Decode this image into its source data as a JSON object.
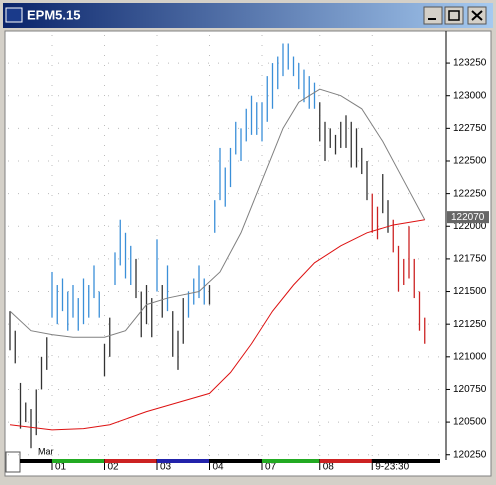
{
  "chart_data": {
    "type": "ohlc",
    "title": "EPM5.15",
    "categories": [
      null,
      null,
      null,
      null,
      null,
      null,
      null,
      null,
      "01",
      null,
      null,
      null,
      null,
      null,
      null,
      null,
      null,
      null,
      "02",
      null,
      null,
      null,
      null,
      null,
      null,
      null,
      null,
      null,
      "03",
      null,
      null,
      null,
      null,
      null,
      null,
      null,
      null,
      null,
      "04",
      null,
      null,
      null,
      null,
      null,
      null,
      null,
      null,
      null,
      "07",
      null,
      null,
      null,
      null,
      null,
      null,
      null,
      null,
      null,
      null,
      "08",
      null,
      null,
      null,
      null,
      null,
      null,
      null,
      null,
      null,
      "9-23:30",
      null,
      null,
      null,
      null,
      null,
      null,
      null,
      null,
      null,
      null
    ],
    "month_label": "Mar",
    "highs": [
      121350,
      121200,
      120800,
      120650,
      120600,
      120750,
      121000,
      121150,
      121650,
      121550,
      121600,
      121500,
      121550,
      121450,
      121600,
      121550,
      121700,
      121500,
      121100,
      121300,
      121800,
      122050,
      121950,
      121850,
      121750,
      121500,
      121550,
      121450,
      121900,
      121550,
      121700,
      121350,
      121200,
      121450,
      121500,
      121600,
      121700,
      121600,
      121550,
      122200,
      122600,
      122450,
      122600,
      122800,
      122750,
      122900,
      123000,
      122950,
      122950,
      123150,
      123250,
      123300,
      123400,
      123400,
      123300,
      123250,
      123200,
      123150,
      123100,
      122950,
      122800,
      122750,
      122700,
      122800,
      122850,
      122800,
      122750,
      122600,
      122500,
      122250,
      122150,
      122400,
      122200,
      122050,
      121850,
      121750,
      122000,
      121750,
      121500,
      121300
    ],
    "lows": [
      121050,
      120950,
      120450,
      120500,
      120300,
      120400,
      120750,
      120900,
      121300,
      121250,
      121350,
      121200,
      121300,
      121200,
      121250,
      121300,
      121450,
      121300,
      120850,
      121000,
      121550,
      121700,
      121600,
      121550,
      121450,
      121150,
      121250,
      121150,
      121500,
      121300,
      121350,
      121000,
      120900,
      121100,
      121300,
      121400,
      121450,
      121400,
      121400,
      121950,
      122200,
      122150,
      122300,
      122550,
      122500,
      122650,
      122700,
      122700,
      122650,
      122800,
      122900,
      123050,
      123150,
      123200,
      123150,
      123050,
      122950,
      122900,
      122900,
      122650,
      122500,
      122600,
      122550,
      122600,
      122600,
      122450,
      122450,
      122400,
      122200,
      121950,
      121900,
      122100,
      121950,
      121800,
      121500,
      121550,
      121600,
      121450,
      121200,
      121100
    ],
    "bar_colors": [
      "#333333",
      "#333333",
      "#333333",
      "#333333",
      "#333333",
      "#333333",
      "#333333",
      "#333333",
      "#3a8fd8",
      "#3a8fd8",
      "#3a8fd8",
      "#3a8fd8",
      "#3a8fd8",
      "#3a8fd8",
      "#3a8fd8",
      "#3a8fd8",
      "#3a8fd8",
      "#3a8fd8",
      "#333333",
      "#333333",
      "#3a8fd8",
      "#3a8fd8",
      "#3a8fd8",
      "#3a8fd8",
      "#333333",
      "#333333",
      "#333333",
      "#333333",
      "#3a8fd8",
      "#333333",
      "#3a8fd8",
      "#333333",
      "#333333",
      "#333333",
      "#3a8fd8",
      "#3a8fd8",
      "#3a8fd8",
      "#3a8fd8",
      "#333333",
      "#3a8fd8",
      "#3a8fd8",
      "#3a8fd8",
      "#3a8fd8",
      "#3a8fd8",
      "#3a8fd8",
      "#3a8fd8",
      "#3a8fd8",
      "#3a8fd8",
      "#3a8fd8",
      "#3a8fd8",
      "#3a8fd8",
      "#3a8fd8",
      "#3a8fd8",
      "#3a8fd8",
      "#3a8fd8",
      "#3a8fd8",
      "#3a8fd8",
      "#3a8fd8",
      "#3a8fd8",
      "#333333",
      "#333333",
      "#333333",
      "#333333",
      "#333333",
      "#333333",
      "#333333",
      "#333333",
      "#333333",
      "#333333",
      "#cc2222",
      "#cc2222",
      "#333333",
      "#333333",
      "#cc2222",
      "#cc2222",
      "#cc2222",
      "#cc2222",
      "#cc2222",
      "#cc2222",
      "#cc2222"
    ],
    "lines": [
      {
        "color": "#808080",
        "x": [
          0,
          4,
          8,
          12,
          18,
          22,
          26,
          30,
          36,
          40,
          44,
          48,
          52,
          55,
          59,
          63,
          67,
          71,
          75,
          79
        ],
        "values": [
          121350,
          121200,
          121170,
          121150,
          121150,
          121200,
          121400,
          121450,
          121500,
          121650,
          121950,
          122350,
          122750,
          122950,
          123050,
          123000,
          122900,
          122650,
          122350,
          122050
        ]
      },
      {
        "color": "#dd1111",
        "x": [
          0,
          8,
          14,
          19,
          26,
          32,
          38,
          42,
          46,
          50,
          54,
          58,
          63,
          68,
          73,
          79
        ],
        "values": [
          120480,
          120440,
          120450,
          120480,
          120580,
          120650,
          120720,
          120880,
          121100,
          121350,
          121550,
          121720,
          121850,
          121950,
          122010,
          122050
        ]
      }
    ],
    "last_price": 122070,
    "ylim": [
      120225,
      123465
    ],
    "yticks": [
      120250,
      120500,
      120750,
      121000,
      121250,
      121500,
      121750,
      122000,
      122250,
      122500,
      122750,
      123000,
      123250
    ],
    "grid": true
  }
}
